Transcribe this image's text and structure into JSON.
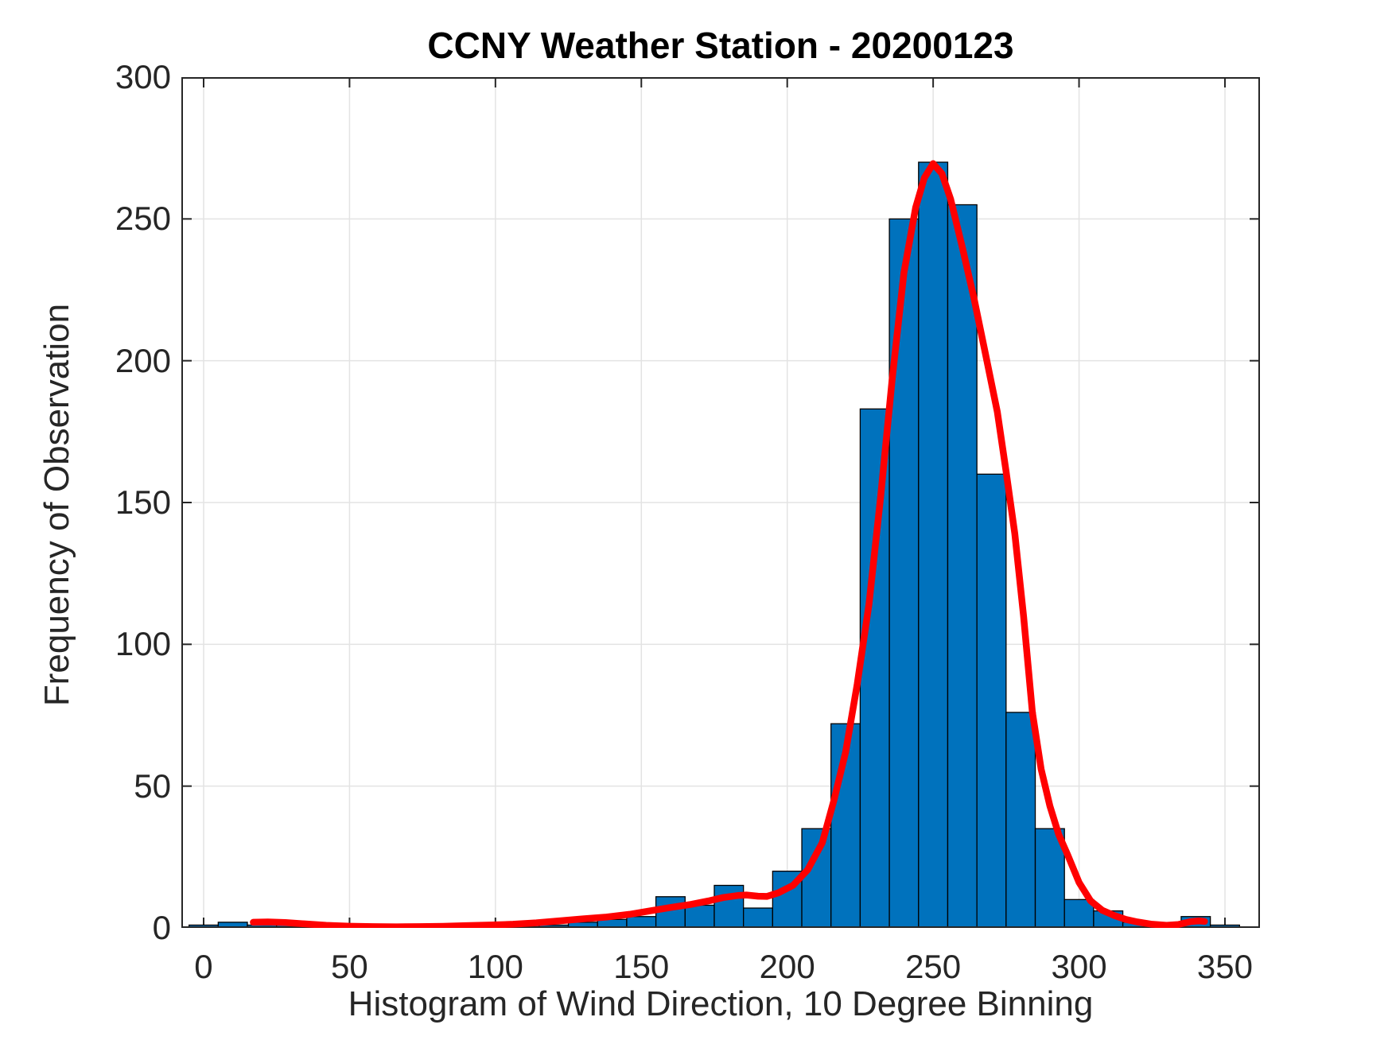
{
  "title": "CCNY Weather Station - 20200123",
  "chart_data": {
    "type": "bar",
    "subtype": "histogram-with-fit-line",
    "title": "CCNY Weather Station - 20200123",
    "xlabel": "Histogram of Wind Direction, 10 Degree Binning",
    "ylabel": "Frequency of Observation",
    "xlim": [
      -7.63,
      362.0
    ],
    "ylim": [
      0,
      300
    ],
    "x_ticks": [
      0,
      50,
      100,
      150,
      200,
      250,
      300,
      350
    ],
    "y_ticks": [
      0,
      50,
      100,
      150,
      200,
      250,
      300
    ],
    "grid": true,
    "legend": "none",
    "bin_width": 10,
    "bin_centers": [
      0,
      10,
      20,
      30,
      40,
      50,
      60,
      70,
      80,
      90,
      100,
      110,
      120,
      130,
      140,
      150,
      160,
      170,
      180,
      190,
      200,
      210,
      220,
      230,
      240,
      250,
      260,
      270,
      280,
      290,
      300,
      310,
      320,
      330,
      340,
      350
    ],
    "values": [
      1,
      2,
      1,
      1,
      1,
      0,
      1,
      0,
      0,
      1,
      1,
      1,
      1,
      2,
      3,
      4,
      11,
      8,
      15,
      7,
      20,
      35,
      72,
      183,
      250,
      270,
      255,
      160,
      76,
      35,
      10,
      6,
      2,
      1,
      4,
      1
    ],
    "bar_color": "#0072BD",
    "bar_edge_color": "#000000",
    "grid_color": "#e3e3e3",
    "axis_color": "#262626",
    "fit_line": {
      "color": "#ff0000",
      "width": 8.5,
      "points": [
        [
          17,
          2
        ],
        [
          22,
          2.1
        ],
        [
          28,
          1.9
        ],
        [
          35,
          1.4
        ],
        [
          42,
          0.9
        ],
        [
          50,
          0.6
        ],
        [
          58,
          0.45
        ],
        [
          66,
          0.4
        ],
        [
          74,
          0.45
        ],
        [
          82,
          0.55
        ],
        [
          90,
          0.8
        ],
        [
          98,
          1.0
        ],
        [
          106,
          1.3
        ],
        [
          114,
          1.8
        ],
        [
          122,
          2.5
        ],
        [
          130,
          3.2
        ],
        [
          138,
          3.8
        ],
        [
          146,
          4.8
        ],
        [
          153,
          6.0
        ],
        [
          160,
          7.2
        ],
        [
          167,
          8.3
        ],
        [
          173,
          9.5
        ],
        [
          178,
          10.7
        ],
        [
          183,
          11.4
        ],
        [
          186,
          11.6
        ],
        [
          190,
          11.2
        ],
        [
          193,
          11.1
        ],
        [
          197,
          12.4
        ],
        [
          202,
          15
        ],
        [
          207,
          20.5
        ],
        [
          212,
          30
        ],
        [
          216,
          45
        ],
        [
          220,
          62
        ],
        [
          224,
          86
        ],
        [
          228,
          114
        ],
        [
          232,
          152
        ],
        [
          236,
          194
        ],
        [
          240,
          231
        ],
        [
          244,
          254
        ],
        [
          247,
          264.5
        ],
        [
          250,
          269.5
        ],
        [
          253,
          266
        ],
        [
          256,
          257
        ],
        [
          260,
          240
        ],
        [
          264,
          222
        ],
        [
          268,
          202
        ],
        [
          272,
          182
        ],
        [
          275,
          161
        ],
        [
          278,
          139
        ],
        [
          281,
          110
        ],
        [
          284,
          76
        ],
        [
          287,
          56
        ],
        [
          290,
          43
        ],
        [
          293,
          33
        ],
        [
          296,
          26
        ],
        [
          300,
          16
        ],
        [
          304,
          9.5
        ],
        [
          308,
          6.2
        ],
        [
          312,
          4.4
        ],
        [
          316,
          3.0
        ],
        [
          320,
          2.1
        ],
        [
          325,
          1.3
        ],
        [
          330,
          0.9
        ],
        [
          334,
          1.2
        ],
        [
          338,
          2.2
        ],
        [
          341,
          2.5
        ],
        [
          343,
          2.3
        ]
      ]
    }
  }
}
